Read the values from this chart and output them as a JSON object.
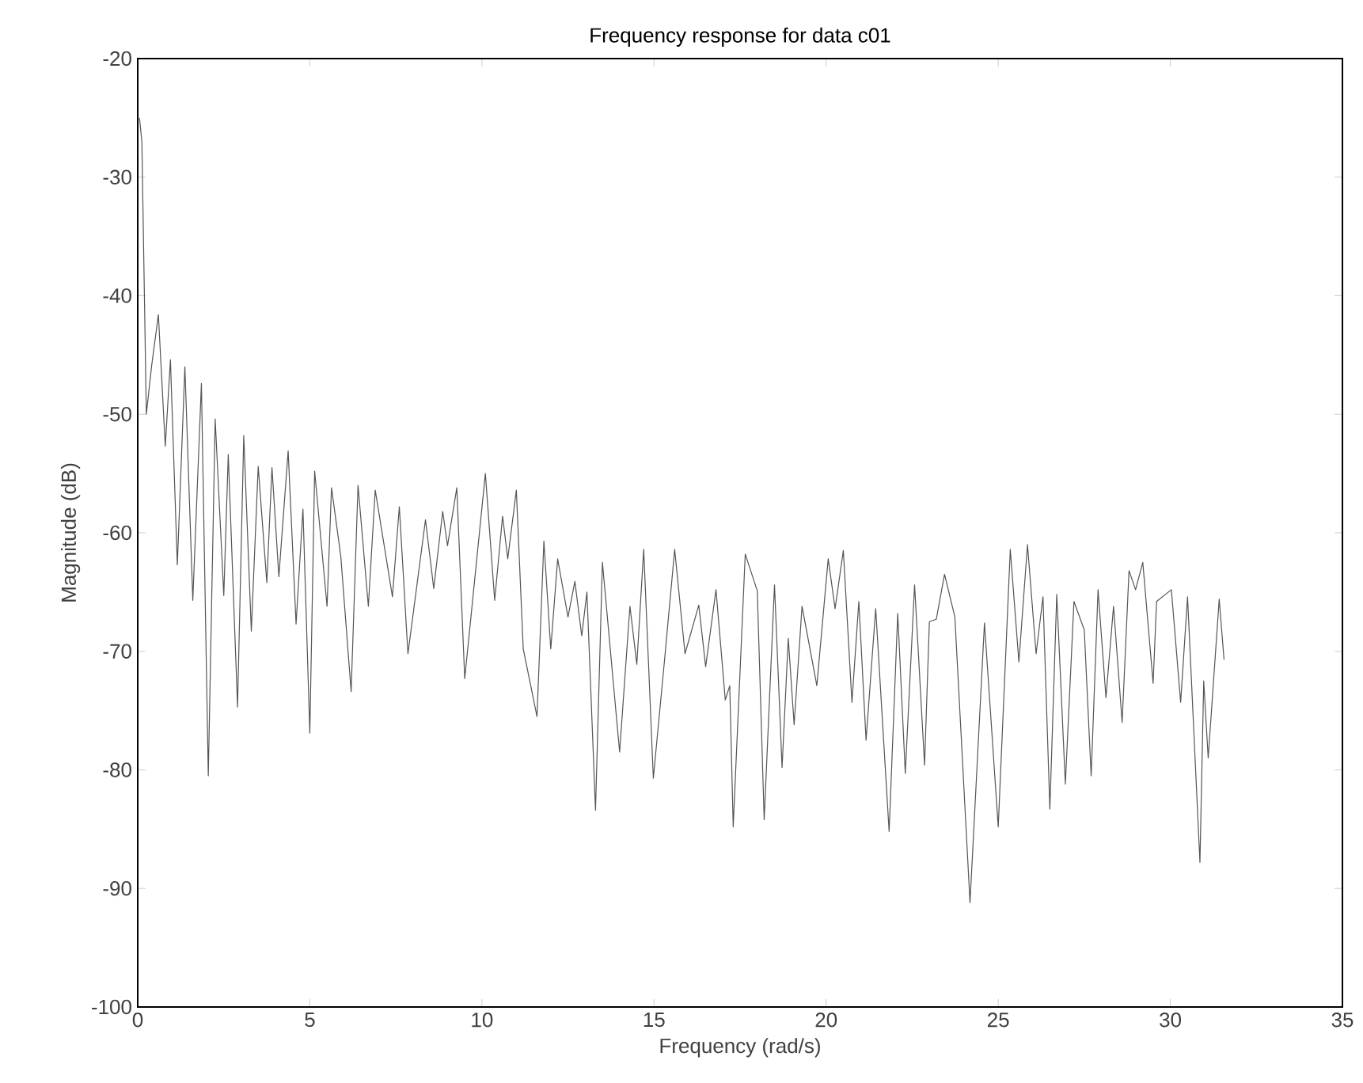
{
  "chart_data": {
    "type": "line",
    "title": "Frequency response for data c01",
    "xlabel": "Frequency (rad/s)",
    "ylabel": "Magnitude (dB)",
    "xlim": [
      0,
      35
    ],
    "ylim": [
      -100,
      -20
    ],
    "xticks": [
      0,
      5,
      10,
      15,
      20,
      25,
      30,
      35
    ],
    "yticks": [
      -100,
      -90,
      -80,
      -70,
      -60,
      -50,
      -40,
      -30,
      -20
    ],
    "grid": false,
    "marker": "none",
    "line_style": "solid",
    "series": [
      {
        "color": "#555555",
        "x": [
          0.05,
          0.12,
          0.25,
          0.4,
          0.6,
          0.8,
          0.95,
          1.15,
          1.37,
          1.6,
          1.85,
          2.05,
          2.25,
          2.5,
          2.63,
          2.9,
          3.08,
          3.3,
          3.5,
          3.75,
          3.9,
          4.1,
          4.37,
          4.6,
          4.8,
          5.0,
          5.14,
          5.5,
          5.63,
          5.9,
          6.2,
          6.4,
          6.7,
          6.9,
          7.4,
          7.6,
          7.85,
          8.36,
          8.6,
          8.86,
          9.0,
          9.27,
          9.5,
          10.1,
          10.37,
          10.6,
          10.75,
          11.0,
          11.2,
          11.6,
          11.8,
          12.0,
          12.2,
          12.5,
          12.7,
          12.9,
          13.05,
          13.3,
          13.5,
          14.0,
          14.3,
          14.5,
          14.7,
          14.98,
          15.3,
          15.6,
          15.9,
          16.3,
          16.5,
          16.8,
          17.07,
          17.2,
          17.3,
          17.65,
          18.0,
          18.2,
          18.5,
          18.72,
          18.9,
          19.07,
          19.3,
          19.73,
          20.06,
          20.26,
          20.5,
          20.75,
          20.95,
          21.16,
          21.44,
          21.83,
          22.08,
          22.3,
          22.57,
          22.86,
          23.0,
          23.2,
          23.44,
          23.74,
          24.18,
          24.6,
          25.0,
          25.35,
          25.6,
          25.85,
          26.1,
          26.3,
          26.5,
          26.7,
          26.95,
          27.2,
          27.5,
          27.7,
          27.9,
          28.13,
          28.35,
          28.6,
          28.8,
          28.99,
          29.2,
          29.5,
          29.6,
          30.03,
          30.3,
          30.5,
          30.86,
          30.97,
          31.1,
          31.42,
          31.56
        ],
        "values": [
          -25,
          -27,
          -50,
          -46,
          -41.6,
          -52.7,
          -45.4,
          -62.7,
          -46,
          -65.7,
          -47.4,
          -80.5,
          -50.4,
          -65.3,
          -53.4,
          -74.7,
          -51.8,
          -68.3,
          -54.4,
          -64.2,
          -54.5,
          -63.7,
          -53.1,
          -67.7,
          -58,
          -76.9,
          -54.8,
          -66.2,
          -56.2,
          -62,
          -73.4,
          -56,
          -66.2,
          -56.4,
          -65.4,
          -57.8,
          -70.2,
          -58.9,
          -64.7,
          -58.2,
          -61.1,
          -56.2,
          -72.3,
          -55,
          -65.7,
          -58.6,
          -62.2,
          -56.4,
          -69.8,
          -75.5,
          -60.7,
          -69.8,
          -62.2,
          -67.1,
          -64.1,
          -68.7,
          -65,
          -83.4,
          -62.5,
          -78.5,
          -66.2,
          -71.1,
          -61.4,
          -80.7,
          -70.9,
          -61.4,
          -70.2,
          -66.1,
          -71.3,
          -64.8,
          -74.1,
          -72.9,
          -84.8,
          -61.8,
          -64.9,
          -84.2,
          -64.4,
          -79.8,
          -68.9,
          -76.2,
          -66.2,
          -72.9,
          -62.2,
          -66.4,
          -61.5,
          -74.3,
          -65.8,
          -77.5,
          -66.4,
          -85.2,
          -66.8,
          -80.3,
          -64.4,
          -79.6,
          -67.5,
          -67.3,
          -63.5,
          -67.1,
          -91.2,
          -67.6,
          -84.8,
          -61.4,
          -70.9,
          -61.0,
          -70.2,
          -65.4,
          -83.3,
          -65.2,
          -81.2,
          -65.8,
          -68.2,
          -80.5,
          -64.8,
          -73.9,
          -66.2,
          -76.0,
          -63.2,
          -64.8,
          -62.5,
          -72.7,
          -65.8,
          -64.8,
          -74.3,
          -65.4,
          -87.8,
          -72.5,
          -79.0,
          -65.6,
          -70.7
        ]
      }
    ]
  }
}
